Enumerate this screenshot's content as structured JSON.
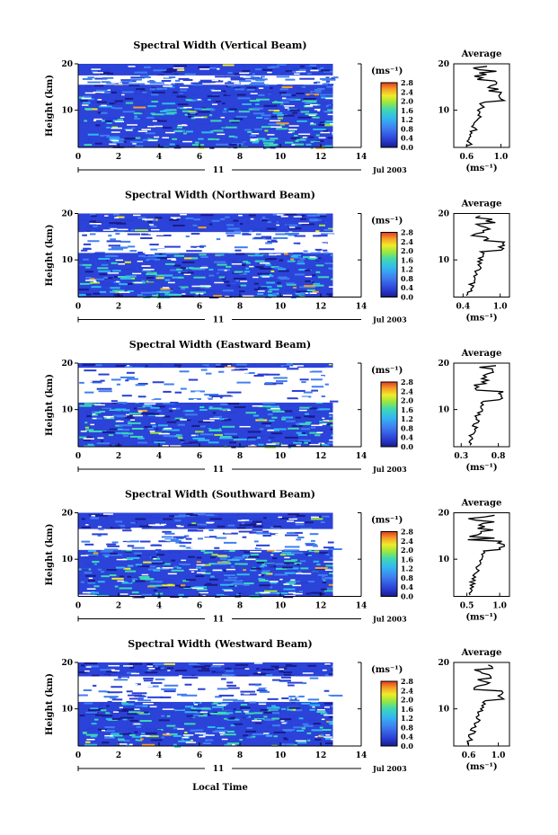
{
  "chart_data": [
    {
      "type": "heatmap",
      "title": "Spectral Width (Vertical Beam)",
      "ylabel": "Height (km)",
      "yticks": [
        "20",
        "10"
      ],
      "xticks": [
        "0",
        "2",
        "4",
        "6",
        "8",
        "10",
        "12",
        "14"
      ],
      "xlim": [
        0,
        14
      ],
      "data_end_hour": 12.6,
      "ylim": [
        2,
        20
      ],
      "day_label": "11",
      "month_label": "Jul 2003",
      "colorbar": {
        "unit": "(ms⁻¹)",
        "ticks": [
          "2.8",
          "2.4",
          "2.0",
          "1.6",
          "1.2",
          "0.8",
          "0.4",
          "0.0"
        ]
      },
      "gaps": [
        [
          15.5,
          17.5
        ]
      ],
      "average": {
        "title": "Average",
        "xticks": [
          "0.6",
          "1.0"
        ],
        "xlim": [
          0.45,
          1.1
        ],
        "yticks": [
          "20",
          "10"
        ],
        "xlabel": "(ms⁻¹)"
      }
    },
    {
      "type": "heatmap",
      "title": "Spectral Width (Northward Beam)",
      "ylabel": "Height (km)",
      "yticks": [
        "20",
        "10"
      ],
      "xticks": [
        "0",
        "2",
        "4",
        "6",
        "8",
        "10",
        "12",
        "14"
      ],
      "xlim": [
        0,
        14
      ],
      "data_end_hour": 12.6,
      "ylim": [
        2,
        20
      ],
      "day_label": "11",
      "month_label": "Jul 2003",
      "colorbar": {
        "unit": "(ms⁻¹)",
        "ticks": [
          "2.8",
          "2.4",
          "2.0",
          "1.6",
          "1.2",
          "0.8",
          "0.4",
          "0.0"
        ]
      },
      "gaps": [
        [
          11.5,
          16.0
        ]
      ],
      "average": {
        "title": "Average",
        "xticks": [
          "0.4",
          "1.0"
        ],
        "xlim": [
          0.25,
          1.15
        ],
        "yticks": [
          "20",
          "10"
        ],
        "xlabel": "(ms⁻¹)"
      }
    },
    {
      "type": "heatmap",
      "title": "Spectral Width (Eastward Beam)",
      "ylabel": "Height (km)",
      "yticks": [
        "20",
        "10"
      ],
      "xticks": [
        "0",
        "2",
        "4",
        "6",
        "8",
        "10",
        "12",
        "14"
      ],
      "xlim": [
        0,
        14
      ],
      "data_end_hour": 12.6,
      "ylim": [
        2,
        20
      ],
      "day_label": "11",
      "month_label": "Jul 2003",
      "colorbar": {
        "unit": "(ms⁻¹)",
        "ticks": [
          "2.8",
          "2.4",
          "2.0",
          "1.6",
          "1.2",
          "0.8",
          "0.4",
          "0.0"
        ]
      },
      "gaps": [
        [
          11.5,
          19.0
        ]
      ],
      "average": {
        "title": "Average",
        "xticks": [
          "0.3",
          "0.8"
        ],
        "xlim": [
          0.2,
          0.95
        ],
        "yticks": [
          "20",
          "10"
        ],
        "xlabel": "(ms⁻¹)"
      }
    },
    {
      "type": "heatmap",
      "title": "Spectral Width (Southward Beam)",
      "ylabel": "Height (km)",
      "yticks": [
        "20",
        "10"
      ],
      "xticks": [
        "0",
        "2",
        "4",
        "6",
        "8",
        "10",
        "12",
        "14"
      ],
      "xlim": [
        0,
        14
      ],
      "data_end_hour": 12.6,
      "ylim": [
        2,
        20
      ],
      "day_label": "11",
      "month_label": "Jul 2003",
      "colorbar": {
        "unit": "(ms⁻¹)",
        "ticks": [
          "2.8",
          "2.4",
          "2.0",
          "1.6",
          "1.2",
          "0.8",
          "0.4",
          "0.0"
        ]
      },
      "gaps": [
        [
          12.0,
          16.5
        ]
      ],
      "average": {
        "title": "Average",
        "xticks": [
          "0.5",
          "1.0"
        ],
        "xlim": [
          0.3,
          1.15
        ],
        "yticks": [
          "20",
          "10"
        ],
        "xlabel": "(ms⁻¹)"
      }
    },
    {
      "type": "heatmap",
      "title": "Spectral Width (Westward Beam)",
      "ylabel": "Height (km)",
      "yticks": [
        "20",
        "10"
      ],
      "xticks": [
        "0",
        "2",
        "4",
        "6",
        "8",
        "10",
        "12",
        "14"
      ],
      "xlim": [
        0,
        14
      ],
      "data_end_hour": 12.6,
      "ylim": [
        2,
        20
      ],
      "day_label": "11",
      "month_label": "Jul 2003",
      "colorbar": {
        "unit": "(ms⁻¹)",
        "ticks": [
          "2.8",
          "2.4",
          "2.0",
          "1.6",
          "1.2",
          "0.8",
          "0.4",
          "0.0"
        ]
      },
      "gaps": [
        [
          11.5,
          17.0
        ]
      ],
      "average": {
        "title": "Average",
        "xticks": [
          "0.6",
          "1.0"
        ],
        "xlim": [
          0.4,
          1.15
        ],
        "yticks": [
          "20",
          "10"
        ],
        "xlabel": "(ms⁻¹)"
      }
    }
  ],
  "xlabel": "Local Time",
  "colors": {
    "scale": [
      "#1a1a8c",
      "#2a3fd6",
      "#3f7ff0",
      "#33b8f0",
      "#3ed8b4",
      "#9ee83a",
      "#f2ea2a",
      "#f4a028",
      "#e63a1e"
    ],
    "background_fill": "#2b43d8",
    "line": "#000000"
  }
}
